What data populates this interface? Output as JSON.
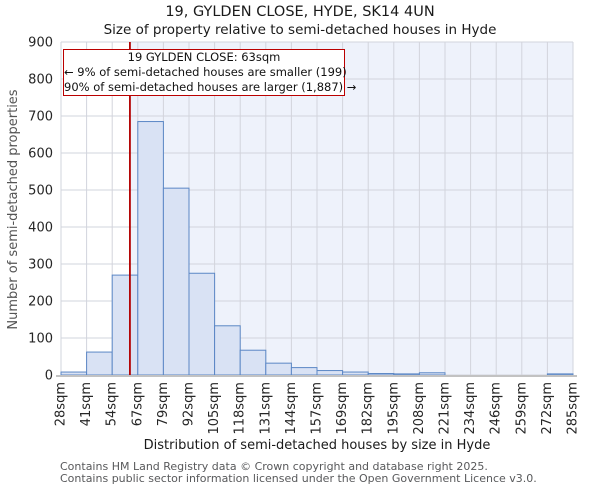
{
  "page": {
    "title": "19, GYLDEN CLOSE, HYDE, SK14 4UN",
    "subtitle": "Size of property relative to semi-detached houses in Hyde"
  },
  "annotation": {
    "line1": "19 GYLDEN CLOSE: 63sqm",
    "line2": "← 9% of semi-detached houses are smaller (199)",
    "line3": "90% of semi-detached houses are larger (1,887) →"
  },
  "footer": {
    "line1": "Contains HM Land Registry data © Crown copyright and database right 2025.",
    "line2": "Contains public sector information licensed under the Open Government Licence v3.0."
  },
  "chart_data": {
    "type": "bar",
    "title": "19, GYLDEN CLOSE, HYDE, SK14 4UN",
    "subtitle": "Size of property relative to semi-detached houses in Hyde",
    "xlabel": "Distribution of semi-detached houses by size in Hyde",
    "ylabel": "Number of semi-detached properties",
    "x_tick_labels": [
      "28sqm",
      "41sqm",
      "54sqm",
      "67sqm",
      "79sqm",
      "92sqm",
      "105sqm",
      "118sqm",
      "131sqm",
      "144sqm",
      "157sqm",
      "169sqm",
      "182sqm",
      "195sqm",
      "208sqm",
      "221sqm",
      "234sqm",
      "246sqm",
      "259sqm",
      "272sqm",
      "285sqm"
    ],
    "bin_edges_sqm": [
      28,
      41,
      54,
      67,
      79,
      92,
      105,
      118,
      131,
      144,
      157,
      169,
      182,
      195,
      208,
      221,
      234,
      246,
      259,
      272,
      285
    ],
    "values": [
      8,
      62,
      270,
      685,
      505,
      275,
      133,
      67,
      32,
      20,
      12,
      8,
      4,
      3,
      6,
      0,
      0,
      0,
      0,
      3
    ],
    "ylim": [
      0,
      900
    ],
    "y_ticks": [
      0,
      100,
      200,
      300,
      400,
      500,
      600,
      700,
      800,
      900
    ],
    "grid": true,
    "legend": "none",
    "marker": {
      "label": "19 GYLDEN CLOSE",
      "value_sqm": 63,
      "smaller_pct": 9,
      "smaller_count": 199,
      "larger_pct": 90,
      "larger_count": 1887
    },
    "colors": {
      "bar_fill": "#d9e2f4",
      "bar_stroke": "#5b87c5",
      "marker_line": "#b30000",
      "annotation_border": "#bb0000",
      "shade_right_of_marker": "#eef2fb",
      "grid": "#d2d4dc",
      "baseline": "#c2c2c2",
      "tick_text": "#262626"
    }
  }
}
